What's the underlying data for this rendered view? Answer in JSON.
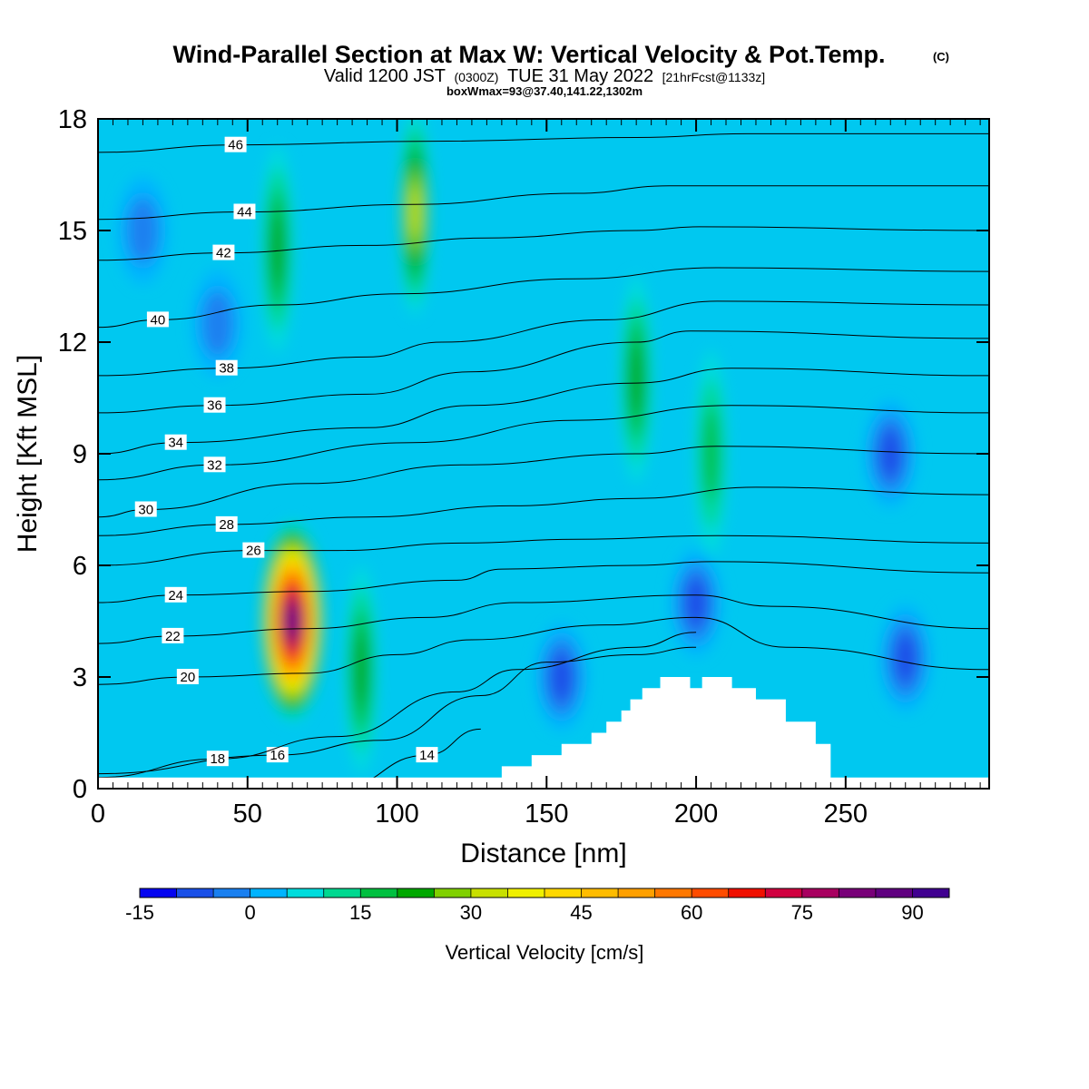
{
  "header": {
    "title": "Wind-Parallel Section at Max W: Vertical Velocity & Pot.Temp.",
    "copyright": "(C)",
    "valid_prefix": "Valid 1200 JST",
    "valid_utc": "(0300Z)",
    "valid_date": "TUE 31 May 2022",
    "forecast": "[21hrFcst@1133z]",
    "boxinfo": "boxWmax=93@37.40,141.22,1302m"
  },
  "chart_data": {
    "type": "heatmap",
    "xlabel": "Distance [nm]",
    "ylabel": "Height [Kft MSL]",
    "xlim": [
      0,
      298
    ],
    "ylim": [
      0,
      18
    ],
    "x_ticks": [
      "0",
      "50",
      "100",
      "150",
      "200",
      "250"
    ],
    "y_ticks": [
      "0",
      "3",
      "6",
      "9",
      "12",
      "15",
      "18"
    ],
    "colorbar": {
      "title": "Vertical Velocity [cm/s]",
      "labels": [
        "-15",
        "0",
        "15",
        "30",
        "45",
        "60",
        "75",
        "90"
      ],
      "bins": [
        -15,
        -10,
        -5,
        0,
        5,
        10,
        15,
        20,
        25,
        30,
        35,
        40,
        45,
        50,
        55,
        60,
        65,
        70,
        75,
        80,
        85,
        90,
        95
      ],
      "colors": [
        "#0505f0",
        "#1a50e8",
        "#1a80f0",
        "#00b4ff",
        "#00dcdc",
        "#00d890",
        "#00c040",
        "#00a800",
        "#80d000",
        "#c8e000",
        "#f0f000",
        "#ffd800",
        "#ffbc00",
        "#ffa000",
        "#ff7800",
        "#ff4c00",
        "#f01000",
        "#d00040",
        "#a80060",
        "#780078",
        "#600080",
        "#400090"
      ]
    },
    "max_w": {
      "value": 93,
      "x": 65,
      "y": 4.5
    },
    "w_features": [
      {
        "x": 65,
        "y": 4.5,
        "peak": 93
      },
      {
        "x": 88,
        "y": 3.2,
        "peak": 22
      },
      {
        "x": 106,
        "y": 15.5,
        "peak": 30
      },
      {
        "x": 60,
        "y": 14.5,
        "peak": 20
      },
      {
        "x": 180,
        "y": 11.0,
        "peak": 20
      },
      {
        "x": 205,
        "y": 9.0,
        "peak": 18
      },
      {
        "x": 155,
        "y": 3.0,
        "peak": -12
      },
      {
        "x": 200,
        "y": 5.0,
        "peak": -13
      },
      {
        "x": 270,
        "y": 3.5,
        "peak": -10
      },
      {
        "x": 265,
        "y": 9.0,
        "peak": -12
      },
      {
        "x": 15,
        "y": 15.0,
        "peak": -6
      },
      {
        "x": 40,
        "y": 12.5,
        "peak": -5
      }
    ],
    "terrain": {
      "x": [
        0,
        127,
        135,
        145,
        155,
        165,
        170,
        175,
        178,
        182,
        188,
        192,
        195,
        198,
        202,
        205,
        212,
        220,
        230,
        240,
        245,
        298
      ],
      "height": [
        0.3,
        0.3,
        0.6,
        0.9,
        1.2,
        1.5,
        1.8,
        2.1,
        2.4,
        2.7,
        3.0,
        3.0,
        3.0,
        2.7,
        3.0,
        3.0,
        2.7,
        2.4,
        1.8,
        1.2,
        0.3,
        0.3
      ]
    },
    "theta_contours": [
      {
        "level": 14,
        "label": "14",
        "x": [
          80,
          110,
          128
        ],
        "y": [
          0.0,
          0.9,
          1.6
        ]
      },
      {
        "level": 16,
        "label": "16",
        "x": [
          0,
          60,
          95,
          128,
          150,
          180,
          200
        ],
        "y": [
          0.4,
          0.9,
          1.3,
          2.5,
          3.4,
          3.6,
          3.8
        ]
      },
      {
        "level": 18,
        "label": "18",
        "x": [
          0,
          40,
          80,
          120,
          140,
          180,
          200
        ],
        "y": [
          0.3,
          0.8,
          1.4,
          2.6,
          3.2,
          3.8,
          4.2
        ]
      },
      {
        "level": 20,
        "label": "20",
        "x": [
          0,
          30,
          70,
          100,
          125,
          170,
          200,
          230,
          298
        ],
        "y": [
          2.8,
          3.0,
          3.1,
          3.6,
          4.0,
          4.4,
          4.6,
          3.8,
          3.2
        ]
      },
      {
        "level": 22,
        "label": "22",
        "x": [
          0,
          25,
          70,
          110,
          140,
          200,
          225,
          298
        ],
        "y": [
          3.9,
          4.1,
          4.3,
          4.6,
          5.0,
          5.2,
          4.9,
          4.3
        ]
      },
      {
        "level": 24,
        "label": "24",
        "x": [
          0,
          26,
          70,
          120,
          135,
          180,
          205,
          298
        ],
        "y": [
          5.0,
          5.2,
          5.3,
          5.6,
          5.9,
          6.0,
          6.1,
          5.8
        ]
      },
      {
        "level": 26,
        "label": "26",
        "x": [
          0,
          52,
          80,
          122,
          160,
          207,
          298
        ],
        "y": [
          6.0,
          6.4,
          6.4,
          6.6,
          6.7,
          6.8,
          6.6
        ]
      },
      {
        "level": 28,
        "label": "28",
        "x": [
          0,
          43,
          90,
          138,
          180,
          220,
          298
        ],
        "y": [
          6.8,
          7.1,
          7.3,
          7.6,
          7.8,
          8.1,
          7.9
        ]
      },
      {
        "level": 30,
        "label": "30",
        "x": [
          0,
          16,
          70,
          122,
          180,
          207,
          298
        ],
        "y": [
          7.3,
          7.5,
          8.2,
          8.7,
          9.0,
          9.2,
          9.0
        ]
      },
      {
        "level": 32,
        "label": "32",
        "x": [
          0,
          39,
          105,
          160,
          212,
          298
        ],
        "y": [
          8.3,
          8.7,
          9.3,
          9.9,
          10.3,
          10.1
        ]
      },
      {
        "level": 34,
        "label": "34",
        "x": [
          0,
          26,
          90,
          125,
          180,
          212,
          298
        ],
        "y": [
          9.0,
          9.3,
          9.7,
          10.3,
          10.9,
          11.3,
          11.1
        ]
      },
      {
        "level": 36,
        "label": "36",
        "x": [
          0,
          39,
          90,
          124,
          180,
          198,
          298
        ],
        "y": [
          10.1,
          10.3,
          10.6,
          11.2,
          12.0,
          12.3,
          12.1
        ]
      },
      {
        "level": 38,
        "label": "38",
        "x": [
          0,
          43,
          90,
          115,
          170,
          207,
          298
        ],
        "y": [
          11.1,
          11.3,
          11.6,
          12.0,
          12.6,
          13.1,
          13.0
        ]
      },
      {
        "level": 40,
        "label": "40",
        "x": [
          0,
          20,
          60,
          101,
          160,
          207,
          298
        ],
        "y": [
          12.4,
          12.6,
          13.0,
          13.3,
          13.7,
          14.0,
          13.9
        ]
      },
      {
        "level": 42,
        "label": "42",
        "x": [
          0,
          42,
          90,
          130,
          180,
          201,
          298
        ],
        "y": [
          14.2,
          14.4,
          14.6,
          14.8,
          15.0,
          15.1,
          15.0
        ]
      },
      {
        "level": 44,
        "label": "44",
        "x": [
          0,
          49,
          105,
          160,
          191,
          298
        ],
        "y": [
          15.3,
          15.5,
          15.7,
          16.0,
          16.2,
          16.2
        ]
      },
      {
        "level": 46,
        "label": "46",
        "x": [
          0,
          46,
          112,
          180,
          217,
          298
        ],
        "y": [
          17.1,
          17.3,
          17.4,
          17.5,
          17.6,
          17.6
        ]
      }
    ]
  }
}
